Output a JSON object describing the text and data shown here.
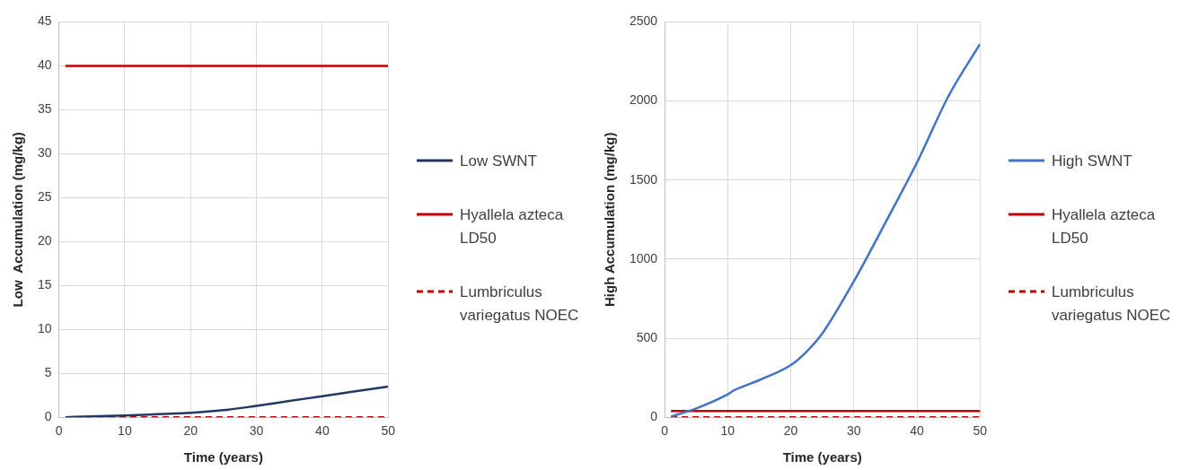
{
  "chart_data": [
    {
      "type": "line",
      "xlabel": "Time (years)",
      "ylabel": "Low  Accumulation (mg/kg)",
      "xlim": [
        0,
        50
      ],
      "xticks": [
        0,
        10,
        20,
        30,
        40,
        50
      ],
      "ylim": [
        0,
        45
      ],
      "yticks": [
        0,
        5,
        10,
        15,
        20,
        25,
        30,
        35,
        40,
        45
      ],
      "grid": true,
      "legend": "right",
      "marker": "none",
      "series": [
        {
          "name": "Low SWNT",
          "color": "#203864",
          "line_style": "solid",
          "x": [
            1,
            5,
            10,
            15,
            20,
            25,
            30,
            35,
            40,
            45,
            50
          ],
          "values": [
            0,
            0.1,
            0.2,
            0.35,
            0.5,
            0.8,
            1.3,
            1.85,
            2.4,
            2.95,
            3.5
          ]
        },
        {
          "name": "Hyallela azteca LD50",
          "color": "#c00000",
          "line_style": "solid",
          "x": [
            1,
            50
          ],
          "values": [
            40,
            40
          ]
        },
        {
          "name": "Lumbriculus variegatus NOEC",
          "color": "#c00000",
          "line_style": "dashed",
          "x": [
            1,
            50
          ],
          "values": [
            0,
            0
          ]
        }
      ]
    },
    {
      "type": "line",
      "xlabel": "Time (years)",
      "ylabel": "High Accumulation (mg/kg)",
      "xlim": [
        0,
        50
      ],
      "xticks": [
        0,
        10,
        20,
        30,
        40,
        50
      ],
      "ylim": [
        0,
        2500
      ],
      "yticks": [
        0,
        500,
        1000,
        1500,
        2000,
        2500
      ],
      "grid": true,
      "legend": "right",
      "marker": "none",
      "series": [
        {
          "name": "High SWNT",
          "color": "#4472c4",
          "line_style": "solid",
          "x": [
            1,
            5,
            10,
            11,
            15,
            20,
            22.5,
            25,
            30,
            35,
            40,
            45,
            50
          ],
          "values": [
            5,
            56,
            145,
            170,
            235,
            330,
            415,
            530,
            860,
            1230,
            1610,
            2030,
            2360
          ]
        },
        {
          "name": "Hyallela azteca LD50",
          "color": "#c00000",
          "line_style": "solid",
          "x": [
            1,
            50
          ],
          "values": [
            40,
            40
          ]
        },
        {
          "name": "Lumbriculus variegatus NOEC",
          "color": "#c00000",
          "line_style": "dashed",
          "x": [
            1,
            50
          ],
          "values": [
            0,
            0
          ]
        }
      ]
    }
  ]
}
